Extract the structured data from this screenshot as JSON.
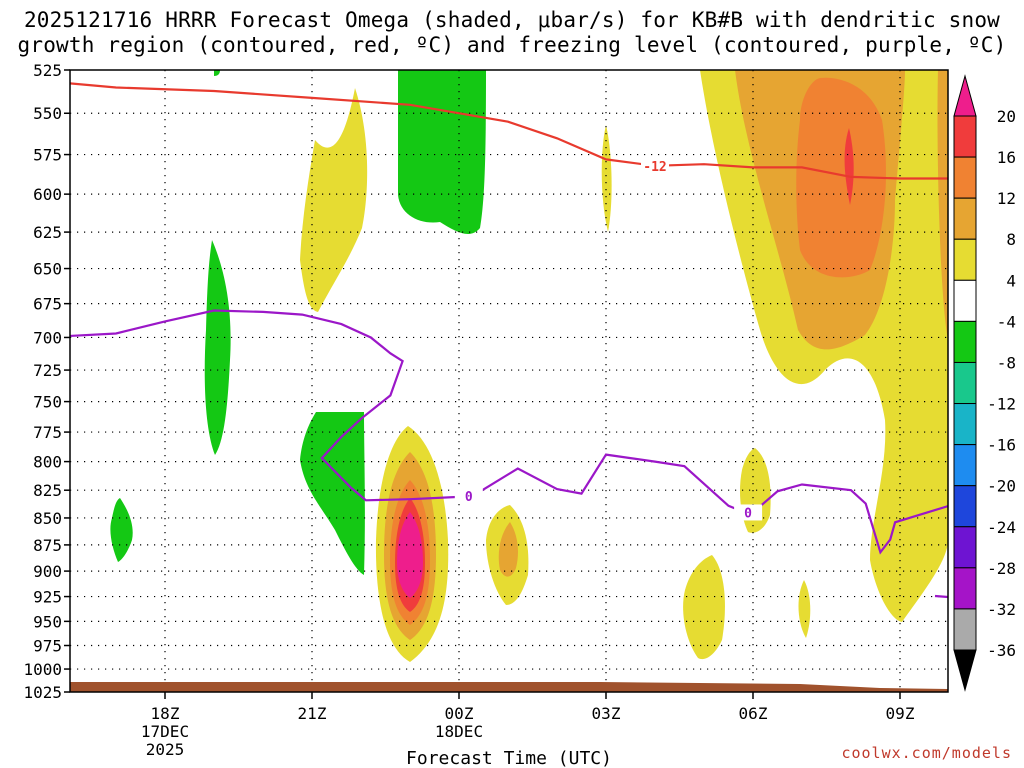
{
  "title": {
    "line1": "2025121716 HRRR Forecast Omega (shaded, μbar/s) for KB#B with dendritic snow",
    "line2": "growth region (contoured, red, ºC) and freezing level (contoured, purple, ºC)"
  },
  "credit": "coolwx.com/models",
  "chart_data": {
    "type": "time-height cross section",
    "xlabel": "Forecast Time (UTC)",
    "ylabel": "Pressure (hPa)",
    "x_range_hours_from_18Z": [
      -3,
      15
    ],
    "y_range_hPa": [
      525,
      1025
    ],
    "y_ticks": [
      "525",
      "550",
      "575",
      "600",
      "625",
      "650",
      "675",
      "700",
      "725",
      "750",
      "775",
      "800",
      "825",
      "850",
      "875",
      "900",
      "925",
      "950",
      "975",
      "1000",
      "1025"
    ],
    "x_ticks": [
      {
        "hour": 0,
        "label": "18Z",
        "sub1": "17DEC",
        "sub2": "2025"
      },
      {
        "hour": 3,
        "label": "21Z",
        "sub1": "",
        "sub2": ""
      },
      {
        "hour": 6,
        "label": "00Z",
        "sub1": "18DEC",
        "sub2": ""
      },
      {
        "hour": 9,
        "label": "03Z",
        "sub1": "",
        "sub2": ""
      },
      {
        "hour": 12,
        "label": "06Z",
        "sub1": "",
        "sub2": ""
      },
      {
        "hour": 15,
        "label": "09Z",
        "sub1": "",
        "sub2": ""
      }
    ],
    "colorbar": {
      "labels": [
        "20",
        "16",
        "12",
        "8",
        "4",
        "-4",
        "-8",
        "-12",
        "-16",
        "-20",
        "-24",
        "-28",
        "-32",
        "-36"
      ],
      "colors": [
        "#ee1e8c",
        "#f03c3c",
        "#f08232",
        "#e6a532",
        "#e6dc32",
        "#ffffff",
        "#14c814",
        "#19c88c",
        "#19b4c8",
        "#1e8cf0",
        "#1e46dc",
        "#6e14d2",
        "#a514c8",
        "#aaaaaa",
        "#000000"
      ]
    },
    "contours": {
      "dgz_label": "-12",
      "dgz_color": "#e83a2e",
      "freezing_label": "0",
      "freezing_color": "#9b17c8",
      "freezing_level_hPa": [
        [
          -3.0,
          700
        ],
        [
          -2.0,
          699
        ],
        [
          -1.0,
          697
        ],
        [
          0.0,
          688
        ],
        [
          1.0,
          680
        ],
        [
          2.0,
          681
        ],
        [
          2.8,
          683
        ],
        [
          3.6,
          690
        ],
        [
          4.2,
          700
        ],
        [
          4.6,
          712
        ],
        [
          4.85,
          718
        ],
        [
          4.6,
          745
        ],
        [
          4.0,
          764
        ],
        [
          3.6,
          779
        ],
        [
          3.2,
          797
        ],
        [
          3.8,
          823
        ],
        [
          4.1,
          834
        ],
        [
          5.0,
          833
        ],
        [
          6.0,
          831
        ],
        [
          6.4,
          827
        ],
        [
          7.2,
          806
        ],
        [
          8.0,
          824
        ],
        [
          8.5,
          828
        ],
        [
          9.0,
          794
        ],
        [
          9.5,
          797
        ],
        [
          10.0,
          800
        ],
        [
          10.6,
          804
        ],
        [
          11.5,
          839
        ],
        [
          11.95,
          847
        ],
        [
          12.0,
          845
        ],
        [
          12.5,
          826
        ],
        [
          13.0,
          820
        ],
        [
          14.0,
          825
        ],
        [
          14.3,
          837
        ],
        [
          14.6,
          882
        ],
        [
          14.8,
          870
        ],
        [
          14.9,
          854
        ],
        [
          16.0,
          839
        ],
        [
          17.0,
          816
        ]
      ],
      "dgz_minus12_hPa": [
        [
          -3.0,
          530
        ],
        [
          -1.0,
          535
        ],
        [
          1.0,
          537
        ],
        [
          3.0,
          541
        ],
        [
          5.0,
          545
        ],
        [
          7.0,
          555
        ],
        [
          8.0,
          565
        ],
        [
          9.0,
          578
        ],
        [
          10.0,
          582
        ],
        [
          11.0,
          581
        ],
        [
          12.0,
          583
        ],
        [
          13.0,
          583
        ],
        [
          14.0,
          589
        ],
        [
          15.0,
          590
        ],
        [
          17.0,
          590
        ]
      ]
    },
    "omega_regions": [
      {
        "value": 8,
        "note": "upper dendritic zone maximum",
        "centre_hours": 13.8,
        "centre_hPa": 580
      },
      {
        "value": 20,
        "note": "low-level ascent maximum",
        "centre_hours": 5.4,
        "centre_hPa": 885
      },
      {
        "value": -8,
        "note": "descent area",
        "centre_hours": 5.6,
        "centre_hPa": 570
      }
    ],
    "terrain_color": "#a0522d"
  }
}
